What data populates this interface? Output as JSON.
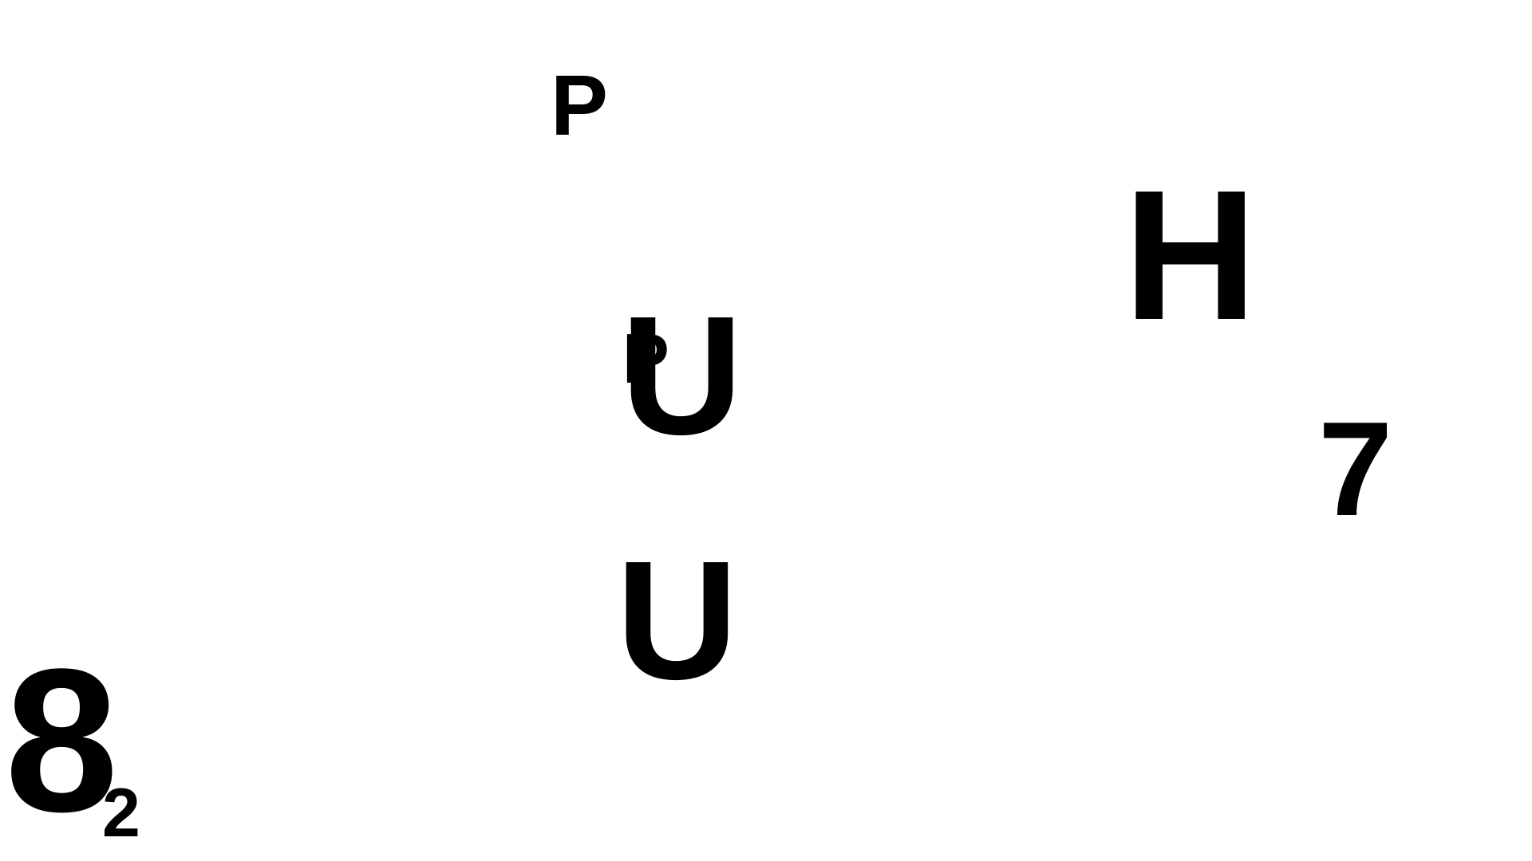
{
  "glyphs": {
    "p_top": "P",
    "h": "H",
    "u_upper": "U",
    "p_overlap": "P",
    "seven": "7",
    "u_lower": "U",
    "eight": "8",
    "two": "2"
  },
  "colors": {
    "background": "#ffffff",
    "text": "#000000"
  }
}
